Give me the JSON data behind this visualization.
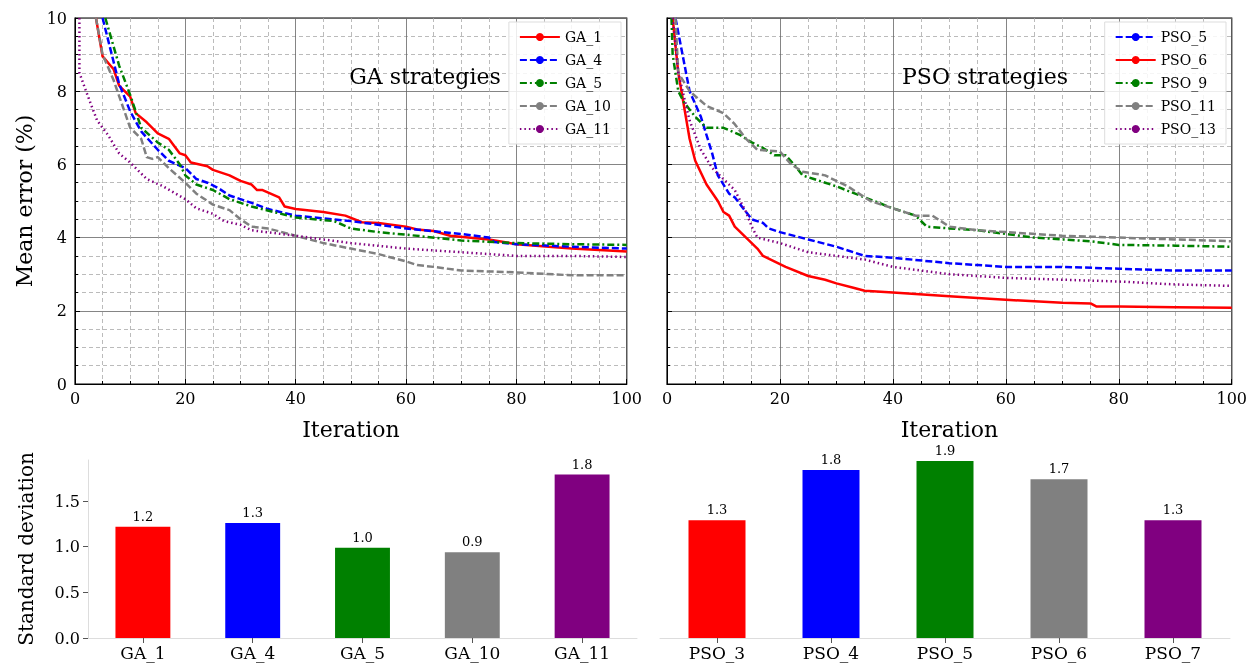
{
  "chart_data": [
    {
      "type": "line",
      "title": "GA strategies",
      "xlabel": "Iteration",
      "ylabel": "Mean error (%)",
      "xlim": [
        0,
        100
      ],
      "ylim": [
        0,
        10
      ],
      "xticks": [
        0,
        20,
        40,
        60,
        80,
        100
      ],
      "yticks": [
        0,
        2,
        4,
        6,
        8,
        10
      ],
      "grid": true,
      "legend": "top right",
      "series": [
        {
          "name": "GA_1",
          "color": "#ff0000",
          "line_style": "solid",
          "x": [
            3.8,
            5,
            7,
            8,
            10,
            11,
            13,
            15,
            17,
            19,
            20,
            21,
            24,
            25,
            28,
            30,
            32,
            33,
            34,
            37,
            38,
            40,
            45,
            49,
            52,
            55,
            60,
            62,
            65,
            68,
            75,
            80,
            90,
            100
          ],
          "values": [
            10,
            8.95,
            8.6,
            8.15,
            7.85,
            7.4,
            7.15,
            6.85,
            6.7,
            6.3,
            6.25,
            6.05,
            5.95,
            5.85,
            5.7,
            5.55,
            5.45,
            5.3,
            5.3,
            5.1,
            4.85,
            4.78,
            4.7,
            4.6,
            4.42,
            4.4,
            4.3,
            4.22,
            4.18,
            4.05,
            3.95,
            3.82,
            3.7,
            3.62
          ]
        },
        {
          "name": "GA_4",
          "color": "#0000ff",
          "line_style": "dashed",
          "x": [
            5,
            8,
            10,
            12,
            15,
            17,
            20,
            22,
            24,
            26,
            28,
            32,
            35,
            40,
            50,
            60,
            70,
            75,
            76,
            80,
            90,
            100
          ],
          "values": [
            10,
            8.2,
            7.45,
            6.9,
            6.4,
            6.1,
            5.9,
            5.6,
            5.5,
            5.35,
            5.15,
            4.95,
            4.78,
            4.6,
            4.45,
            4.25,
            4.1,
            4.0,
            3.88,
            3.82,
            3.75,
            3.7
          ]
        },
        {
          "name": "GA_5",
          "color": "#008000",
          "line_style": "dashdot",
          "x": [
            5.5,
            8,
            10,
            12,
            15,
            17,
            19,
            20,
            22,
            25,
            28,
            32,
            40,
            47,
            50,
            55,
            60,
            70,
            80,
            90,
            100
          ],
          "values": [
            10,
            8.7,
            7.9,
            7.0,
            6.6,
            6.4,
            6.0,
            5.7,
            5.45,
            5.3,
            5.05,
            4.85,
            4.55,
            4.45,
            4.25,
            4.15,
            4.08,
            3.92,
            3.85,
            3.82,
            3.8
          ]
        },
        {
          "name": "GA_10",
          "color": "#808080",
          "line_style": "dashed",
          "x": [
            3.8,
            5,
            7,
            10,
            12,
            13,
            14,
            15,
            17,
            20,
            22,
            25,
            28,
            30,
            32,
            35,
            40,
            45,
            50,
            55,
            60,
            62,
            65,
            70,
            80,
            90,
            100
          ],
          "values": [
            10,
            9,
            8.3,
            7.0,
            6.7,
            6.2,
            6.15,
            6.2,
            5.9,
            5.5,
            5.2,
            4.9,
            4.75,
            4.5,
            4.3,
            4.25,
            4.05,
            3.85,
            3.7,
            3.55,
            3.35,
            3.25,
            3.2,
            3.1,
            3.05,
            2.97,
            2.97
          ]
        },
        {
          "name": "GA_11",
          "color": "#800080",
          "line_style": "dotted",
          "x": [
            0.8,
            0.8,
            2,
            4,
            6,
            8,
            10,
            13,
            16,
            20,
            22,
            25,
            27,
            30,
            32,
            40,
            50,
            60,
            70,
            80,
            90,
            100
          ],
          "values": [
            10,
            8.5,
            8,
            7.2,
            6.8,
            6.3,
            6.05,
            5.6,
            5.4,
            5.05,
            4.8,
            4.65,
            4.45,
            4.35,
            4.2,
            4.05,
            3.85,
            3.7,
            3.6,
            3.5,
            3.5,
            3.47
          ]
        }
      ]
    },
    {
      "type": "line",
      "title": "PSO strategies",
      "xlabel": "Iteration",
      "xlim": [
        0,
        100
      ],
      "ylim": [
        0,
        10
      ],
      "xticks": [
        0,
        20,
        40,
        60,
        80,
        100
      ],
      "yticks": [
        0,
        2,
        4,
        6,
        8,
        10
      ],
      "tick_labels": "x",
      "grid": true,
      "legend": "top right",
      "series": [
        {
          "name": "PSO_5",
          "color": "#0000ff",
          "line_style": "dashed",
          "x": [
            1.5,
            4,
            6,
            8,
            9,
            11,
            12,
            15,
            17,
            18,
            20,
            25,
            30,
            35,
            40,
            50,
            55,
            60,
            70,
            80,
            90,
            100
          ],
          "values": [
            10,
            8.0,
            7.3,
            6.3,
            5.7,
            5.2,
            5.1,
            4.5,
            4.4,
            4.25,
            4.15,
            3.95,
            3.75,
            3.5,
            3.45,
            3.3,
            3.25,
            3.2,
            3.2,
            3.15,
            3.1,
            3.1
          ]
        },
        {
          "name": "PSO_6",
          "color": "#ff0000",
          "line_style": "solid",
          "x": [
            1,
            2,
            4,
            5,
            7,
            9,
            10,
            11,
            12,
            14,
            16,
            17,
            19,
            21,
            25,
            28,
            30,
            33,
            35,
            40,
            50,
            55,
            60,
            70,
            75,
            76,
            80,
            90,
            100
          ],
          "values": [
            10,
            8.5,
            6.7,
            6.1,
            5.45,
            5.0,
            4.7,
            4.6,
            4.3,
            4.0,
            3.7,
            3.5,
            3.35,
            3.2,
            2.95,
            2.85,
            2.75,
            2.63,
            2.55,
            2.5,
            2.4,
            2.35,
            2.3,
            2.22,
            2.2,
            2.12,
            2.12,
            2.1,
            2.08
          ]
        },
        {
          "name": "PSO_9",
          "color": "#008000",
          "line_style": "dashdot",
          "x": [
            0.8,
            1,
            2,
            3,
            5,
            7,
            10,
            13,
            15,
            17,
            19,
            21,
            23,
            24,
            26,
            30,
            35,
            40,
            44,
            46,
            50,
            55,
            60,
            65,
            70,
            75,
            80,
            90,
            100
          ],
          "values": [
            10,
            9.0,
            8.0,
            7.7,
            7.3,
            7.0,
            7.0,
            6.8,
            6.6,
            6.45,
            6.25,
            6.25,
            5.9,
            5.7,
            5.6,
            5.4,
            5.1,
            4.8,
            4.6,
            4.3,
            4.25,
            4.2,
            4.1,
            4.0,
            3.95,
            3.9,
            3.8,
            3.78,
            3.75
          ]
        },
        {
          "name": "PSO_11",
          "color": "#808080",
          "line_style": "dashed",
          "x": [
            1.5,
            2,
            4,
            7,
            10,
            12,
            14,
            16,
            20,
            22,
            24,
            28,
            32,
            36,
            40,
            44,
            47,
            50,
            55,
            60,
            70,
            80,
            90,
            100
          ],
          "values": [
            10,
            8.5,
            8.0,
            7.6,
            7.4,
            7.1,
            6.7,
            6.4,
            6.35,
            6.0,
            5.8,
            5.7,
            5.4,
            5.0,
            4.8,
            4.6,
            4.6,
            4.3,
            4.2,
            4.15,
            4.05,
            4.0,
            3.95,
            3.9
          ]
        },
        {
          "name": "PSO_13",
          "color": "#800080",
          "line_style": "dotted",
          "x": [
            1,
            2,
            4,
            6,
            8,
            10,
            12,
            14,
            15,
            16,
            20,
            25,
            30,
            35,
            40,
            50,
            60,
            70,
            80,
            90,
            100
          ],
          "values": [
            10,
            8.5,
            7.2,
            6.4,
            5.9,
            5.6,
            5.3,
            4.7,
            4.3,
            4.0,
            3.85,
            3.6,
            3.5,
            3.4,
            3.2,
            3.0,
            2.9,
            2.85,
            2.8,
            2.72,
            2.68
          ]
        }
      ]
    },
    {
      "type": "bar",
      "ylabel": "Standard deviation",
      "categories": [
        "GA_1",
        "GA_4",
        "GA_5",
        "GA_10",
        "GA_11"
      ],
      "values": [
        1.22,
        1.26,
        0.99,
        0.94,
        1.79
      ],
      "colors": [
        "#ff0000",
        "#0000ff",
        "#008000",
        "#808080",
        "#800080"
      ],
      "value_labels": [
        "1.2",
        "1.3",
        "1.0",
        "0.9",
        "1.8"
      ],
      "ylim": [
        0,
        1.95
      ],
      "yticks": [
        {
          "value": 0,
          "label": "0.0"
        },
        {
          "value": 0.5,
          "label": "0.5"
        },
        {
          "value": 1,
          "label": "1.0"
        },
        {
          "value": 1.5,
          "label": "1.5"
        }
      ]
    },
    {
      "type": "bar",
      "categories": [
        "PSO_3",
        "PSO_4",
        "PSO_5",
        "PSO_6",
        "PSO_7"
      ],
      "values": [
        1.29,
        1.84,
        1.94,
        1.74,
        1.29
      ],
      "colors": [
        "#ff0000",
        "#0000ff",
        "#008000",
        "#808080",
        "#800080"
      ],
      "value_labels": [
        "1.3",
        "1.8",
        "1.9",
        "1.7",
        "1.3"
      ],
      "ylim": [
        0,
        1.95
      ],
      "tick_labels": "x"
    }
  ]
}
